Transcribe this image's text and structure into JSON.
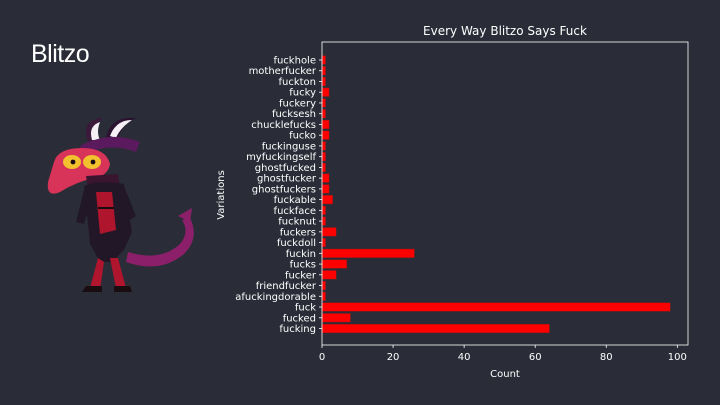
{
  "slide": {
    "title": "Blitzo"
  },
  "character_image": {
    "icon": "blitzo-imp-character-icon"
  },
  "colors": {
    "background": "#2a2d37",
    "bar_fill": "#ff0000",
    "bar_edge": "#8b1a1a",
    "axis": "#ffffff"
  },
  "chart_data": {
    "type": "bar",
    "orientation": "horizontal",
    "title": "Every Way Blitzo Says Fuck",
    "xlabel": "Count",
    "ylabel": "Variations",
    "xlim": [
      0,
      103
    ],
    "xticks": [
      0,
      20,
      40,
      60,
      80,
      100
    ],
    "grid": false,
    "categories": [
      "fucking",
      "fucked",
      "fuck",
      "afuckingdorable",
      "friendfucker",
      "fucker",
      "fucks",
      "fuckin",
      "fuckdoll",
      "fuckers",
      "fucknut",
      "fuckface",
      "fuckable",
      "ghostfuckers",
      "ghostfucker",
      "ghostfucked",
      "myfuckingself",
      "fuckinguse",
      "fucko",
      "chucklefucks",
      "fucksesh",
      "fuckery",
      "fucky",
      "fuckton",
      "motherfucker",
      "fuckhole"
    ],
    "values": [
      64,
      8,
      98,
      1,
      1,
      4,
      7,
      26,
      1,
      4,
      1,
      1,
      3,
      2,
      2,
      1,
      1,
      1,
      2,
      2,
      1,
      1,
      2,
      1,
      1,
      1
    ]
  }
}
